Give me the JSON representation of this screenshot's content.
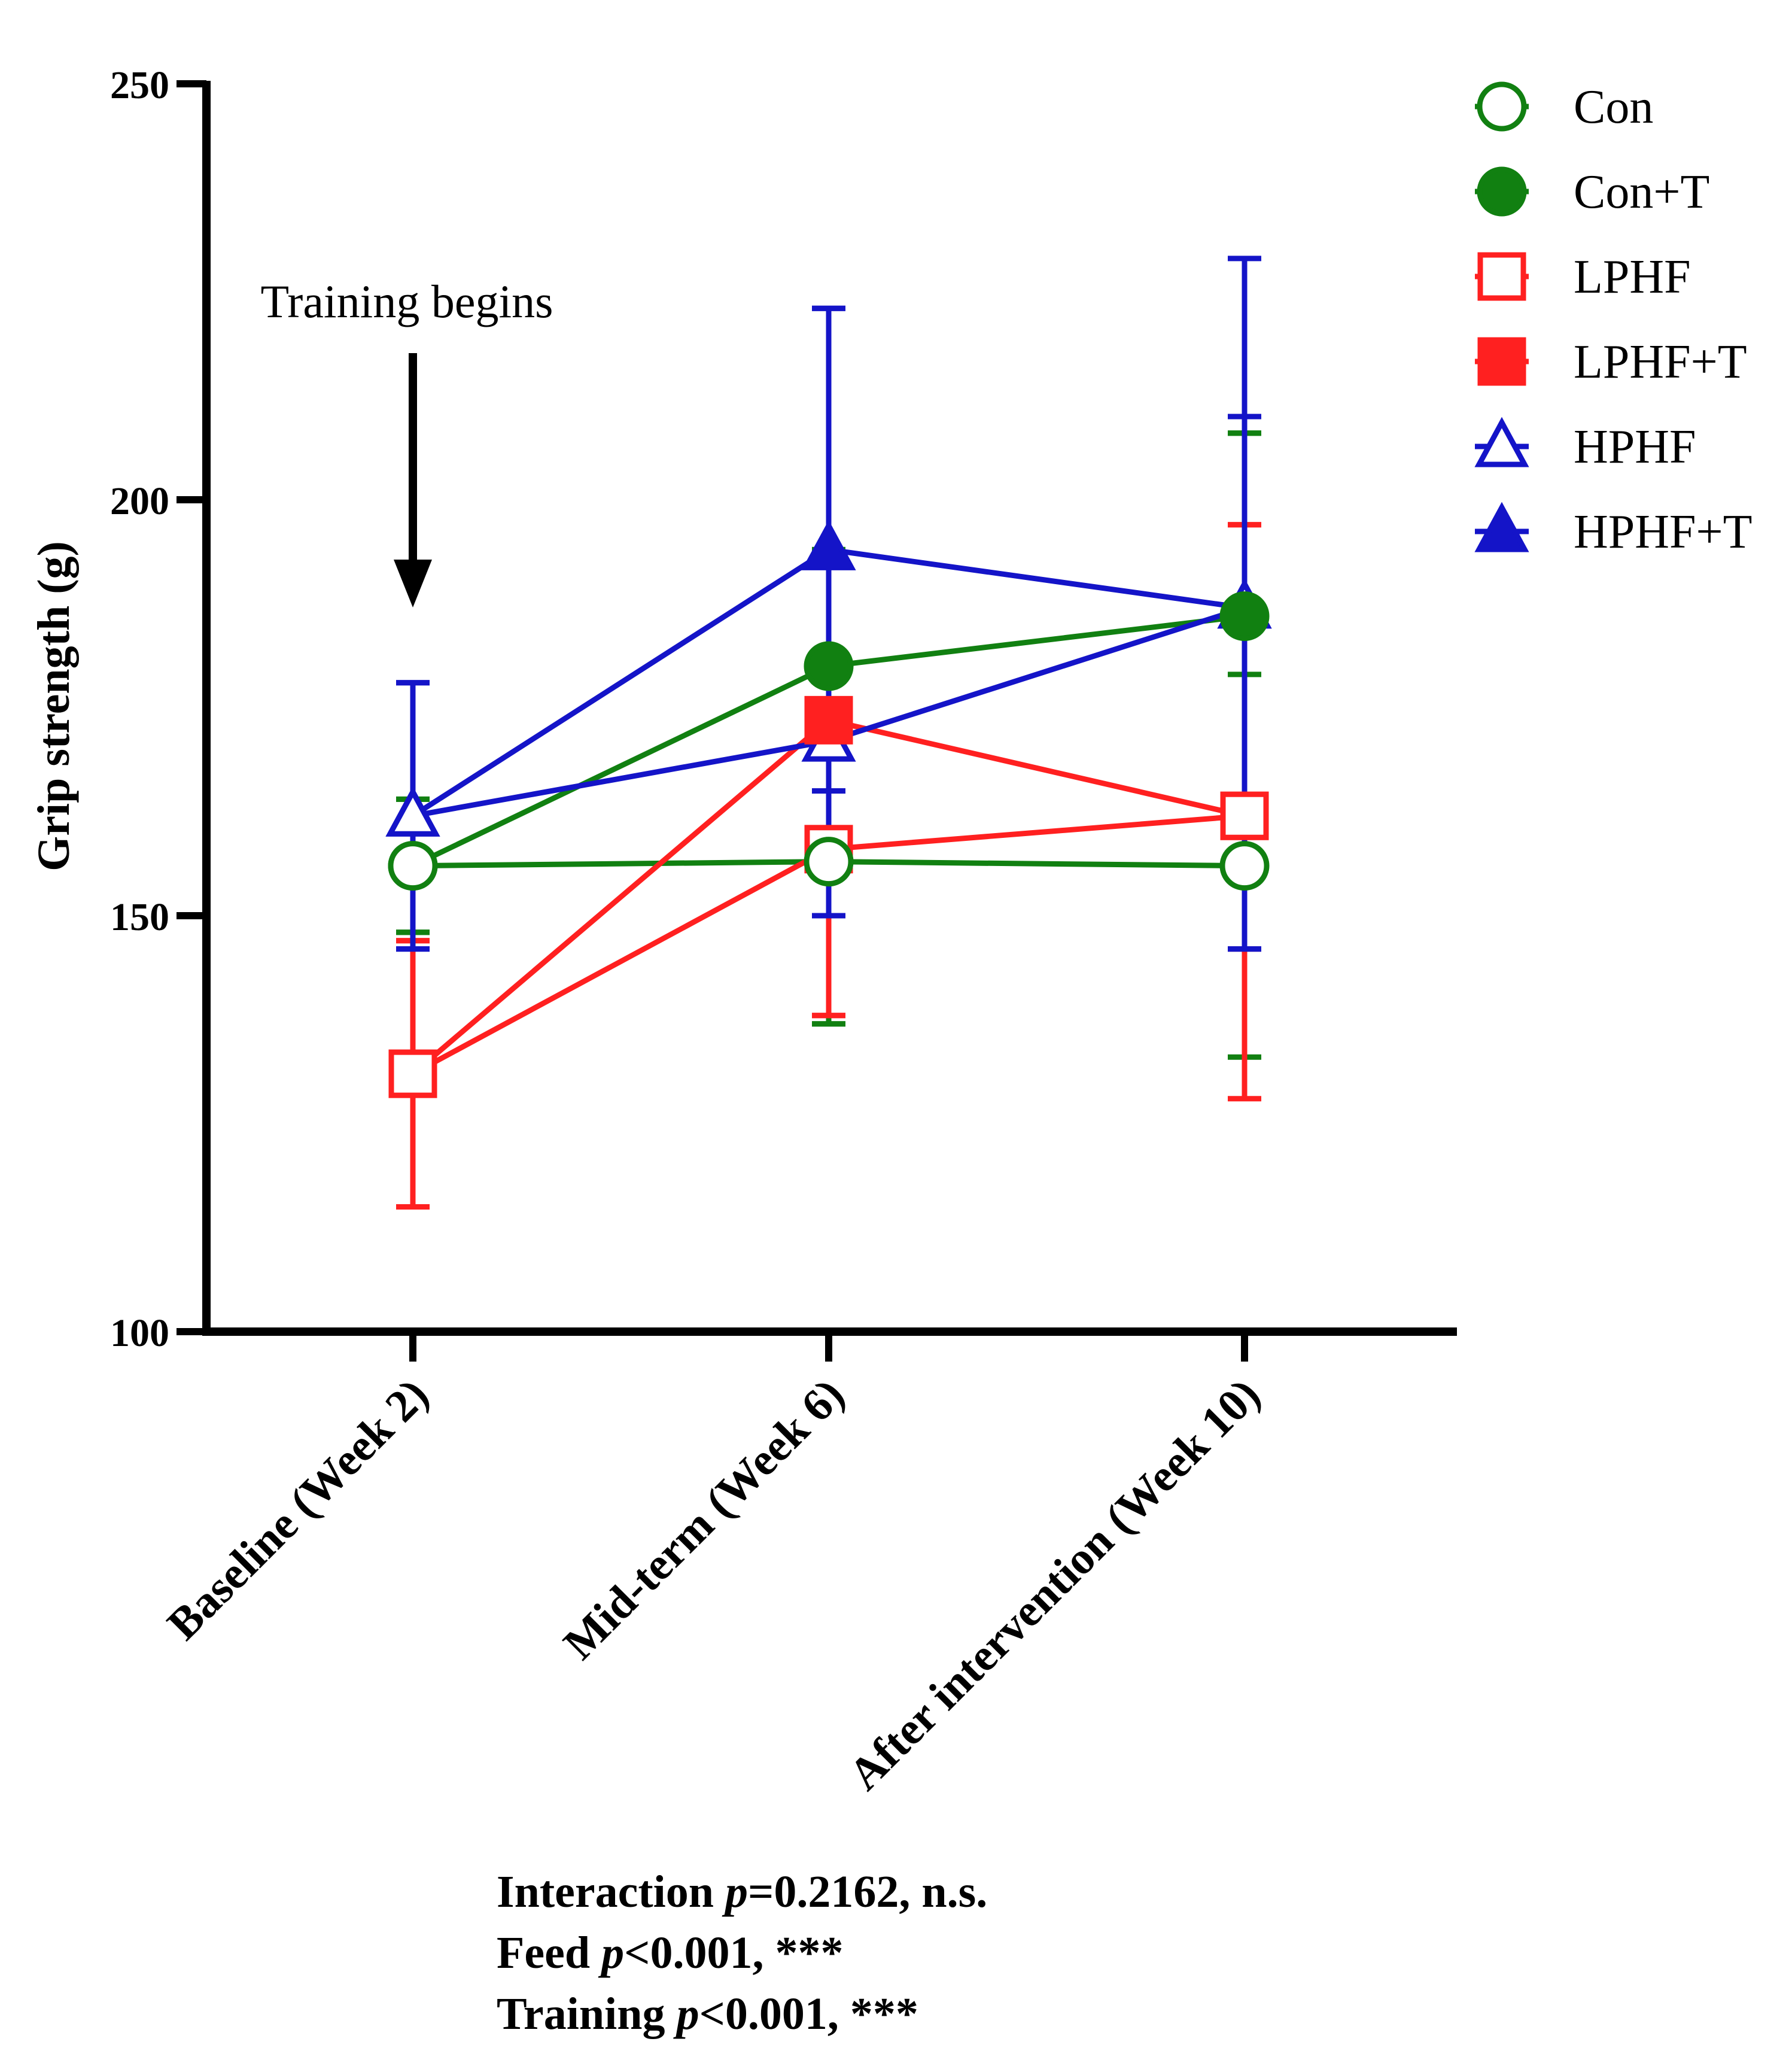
{
  "chart_data": {
    "type": "line",
    "ylabel": "Grip strength (g)",
    "ylim": [
      100,
      250
    ],
    "yticks": [
      100,
      150,
      200,
      250
    ],
    "categories": [
      "Baseline (Week 2)",
      "Mid-term (Week 6)",
      "After intervention (Week 10)"
    ],
    "annotation": "Training begins",
    "annotation_at": "Baseline (Week 2)",
    "legend_position": "top-right",
    "series": [
      {
        "name": "Con",
        "color": "#118011",
        "marker": "circle-open",
        "values": [
          156,
          156.5,
          156
        ],
        "err_upper": [
          164,
          194,
          208
        ],
        "err_lower": [
          148,
          137,
          133
        ]
      },
      {
        "name": "Con+T",
        "color": "#118011",
        "marker": "circle-filled",
        "values": [
          156,
          180,
          186
        ],
        "err_upper": [
          164,
          194,
          208
        ],
        "err_lower": [
          148,
          137,
          179
        ]
      },
      {
        "name": "LPHF",
        "color": "#ff2020",
        "marker": "square-open",
        "values": [
          131,
          158,
          162
        ],
        "err_upper": [
          147,
          192,
          197
        ],
        "err_lower": [
          115,
          138,
          128
        ]
      },
      {
        "name": "LPHF+T",
        "color": "#ff2020",
        "marker": "square-filled",
        "values": [
          131,
          173.5,
          162
        ],
        "err_upper": [
          147,
          192,
          197
        ],
        "err_lower": [
          115,
          138,
          146
        ]
      },
      {
        "name": "HPHF",
        "color": "#1414c8",
        "marker": "triangle-open",
        "values": [
          162,
          171,
          187
        ],
        "err_upper": [
          178,
          223,
          229
        ],
        "err_lower": [
          146,
          150,
          146
        ]
      },
      {
        "name": "HPHF+T",
        "color": "#1414c8",
        "marker": "triangle-filled",
        "values": [
          162,
          194,
          187
        ],
        "err_upper": [
          178,
          223,
          210
        ],
        "err_lower": [
          146,
          165,
          146
        ]
      }
    ]
  },
  "stats": {
    "interaction_label": "Interaction ",
    "interaction_p": "p",
    "interaction_value": "=0.2162, n.s.",
    "feed_label": "Feed  ",
    "feed_p": "p",
    "feed_value": "<0.001, ***",
    "training_label": "Training ",
    "training_p": "p",
    "training_value": "<0.001, ***"
  }
}
